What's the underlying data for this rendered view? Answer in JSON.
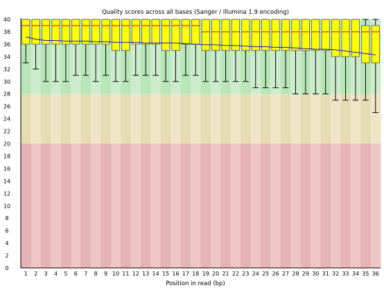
{
  "chart_data": {
    "type": "boxplot",
    "title": "Quality scores across all bases (Sanger / Illumina 1.9 encoding)",
    "xlabel": "Position in read (bp)",
    "ylabel": "",
    "ylim": [
      0,
      40
    ],
    "y_ticks": [
      0,
      2,
      4,
      6,
      8,
      10,
      12,
      14,
      16,
      18,
      20,
      22,
      24,
      26,
      28,
      30,
      32,
      34,
      36,
      38,
      40
    ],
    "categories": [
      "1",
      "2",
      "3",
      "4",
      "5",
      "6",
      "7",
      "8",
      "9",
      "10",
      "11",
      "12",
      "13",
      "14",
      "15",
      "16",
      "17",
      "18",
      "19",
      "20",
      "21",
      "22",
      "23",
      "24",
      "25",
      "26",
      "27",
      "28",
      "29",
      "30",
      "31",
      "32",
      "33",
      "34",
      "35",
      "36"
    ],
    "bands": [
      {
        "range": [
          28,
          40
        ],
        "color": "#b9e6b9",
        "alt_color": "#cdeccd"
      },
      {
        "range": [
          20,
          28
        ],
        "color": "#e6dcb4",
        "alt_color": "#efe6c8"
      },
      {
        "range": [
          0,
          20
        ],
        "color": "#e6b4b4",
        "alt_color": "#efc6c6"
      }
    ],
    "box_color": "#ffff00",
    "box_border": "#555555",
    "median_color": "#dd0000",
    "mean_line_color": "#1a1aa6",
    "boxes": [
      {
        "whisker_low": 33,
        "q1": 36,
        "median": 39,
        "q3": 40,
        "whisker_high": 40
      },
      {
        "whisker_low": 32,
        "q1": 36,
        "median": 39,
        "q3": 40,
        "whisker_high": 40
      },
      {
        "whisker_low": 30,
        "q1": 36,
        "median": 39,
        "q3": 40,
        "whisker_high": 40
      },
      {
        "whisker_low": 30,
        "q1": 36,
        "median": 39,
        "q3": 40,
        "whisker_high": 40
      },
      {
        "whisker_low": 30,
        "q1": 36,
        "median": 39,
        "q3": 40,
        "whisker_high": 40
      },
      {
        "whisker_low": 31,
        "q1": 36,
        "median": 39,
        "q3": 40,
        "whisker_high": 40
      },
      {
        "whisker_low": 31,
        "q1": 36,
        "median": 39,
        "q3": 40,
        "whisker_high": 40
      },
      {
        "whisker_low": 30,
        "q1": 36,
        "median": 39,
        "q3": 40,
        "whisker_high": 40
      },
      {
        "whisker_low": 31,
        "q1": 36,
        "median": 39,
        "q3": 40,
        "whisker_high": 40
      },
      {
        "whisker_low": 30,
        "q1": 35,
        "median": 39,
        "q3": 40,
        "whisker_high": 40
      },
      {
        "whisker_low": 30,
        "q1": 35,
        "median": 39,
        "q3": 40,
        "whisker_high": 40
      },
      {
        "whisker_low": 31,
        "q1": 36,
        "median": 39,
        "q3": 40,
        "whisker_high": 40
      },
      {
        "whisker_low": 31,
        "q1": 36,
        "median": 39,
        "q3": 40,
        "whisker_high": 40
      },
      {
        "whisker_low": 31,
        "q1": 36,
        "median": 39,
        "q3": 40,
        "whisker_high": 40
      },
      {
        "whisker_low": 30,
        "q1": 35,
        "median": 39,
        "q3": 40,
        "whisker_high": 40
      },
      {
        "whisker_low": 30,
        "q1": 35,
        "median": 39,
        "q3": 40,
        "whisker_high": 40
      },
      {
        "whisker_low": 31,
        "q1": 36,
        "median": 39,
        "q3": 40,
        "whisker_high": 40
      },
      {
        "whisker_low": 31,
        "q1": 36,
        "median": 39,
        "q3": 40,
        "whisker_high": 40
      },
      {
        "whisker_low": 30,
        "q1": 35,
        "median": 38,
        "q3": 40,
        "whisker_high": 40
      },
      {
        "whisker_low": 30,
        "q1": 35,
        "median": 38,
        "q3": 40,
        "whisker_high": 40
      },
      {
        "whisker_low": 30,
        "q1": 35,
        "median": 38,
        "q3": 40,
        "whisker_high": 40
      },
      {
        "whisker_low": 30,
        "q1": 35,
        "median": 38,
        "q3": 40,
        "whisker_high": 40
      },
      {
        "whisker_low": 30,
        "q1": 35,
        "median": 38,
        "q3": 40,
        "whisker_high": 40
      },
      {
        "whisker_low": 29,
        "q1": 35,
        "median": 38,
        "q3": 40,
        "whisker_high": 40
      },
      {
        "whisker_low": 29,
        "q1": 35,
        "median": 38,
        "q3": 40,
        "whisker_high": 40
      },
      {
        "whisker_low": 29,
        "q1": 35,
        "median": 38,
        "q3": 40,
        "whisker_high": 40
      },
      {
        "whisker_low": 29,
        "q1": 35,
        "median": 38,
        "q3": 40,
        "whisker_high": 40
      },
      {
        "whisker_low": 28,
        "q1": 35,
        "median": 38,
        "q3": 40,
        "whisker_high": 40
      },
      {
        "whisker_low": 28,
        "q1": 35,
        "median": 38,
        "q3": 40,
        "whisker_high": 40
      },
      {
        "whisker_low": 28,
        "q1": 35,
        "median": 38,
        "q3": 40,
        "whisker_high": 40
      },
      {
        "whisker_low": 28,
        "q1": 35,
        "median": 38,
        "q3": 40,
        "whisker_high": 40
      },
      {
        "whisker_low": 27,
        "q1": 34,
        "median": 38,
        "q3": 40,
        "whisker_high": 40
      },
      {
        "whisker_low": 27,
        "q1": 34,
        "median": 38,
        "q3": 40,
        "whisker_high": 40
      },
      {
        "whisker_low": 27,
        "q1": 34,
        "median": 38,
        "q3": 40,
        "whisker_high": 40
      },
      {
        "whisker_low": 27,
        "q1": 33,
        "median": 38,
        "q3": 39,
        "whisker_high": 40
      },
      {
        "whisker_low": 25,
        "q1": 33,
        "median": 38,
        "q3": 39,
        "whisker_high": 40
      }
    ],
    "mean": [
      37.2,
      36.8,
      36.6,
      36.6,
      36.5,
      36.5,
      36.5,
      36.4,
      36.4,
      36.3,
      36.3,
      36.3,
      36.2,
      36.2,
      36.2,
      36.2,
      36.1,
      36.0,
      35.9,
      35.9,
      35.8,
      35.8,
      35.7,
      35.6,
      35.6,
      35.5,
      35.5,
      35.4,
      35.3,
      35.2,
      35.2,
      35.1,
      34.9,
      34.7,
      34.5,
      34.3
    ]
  }
}
